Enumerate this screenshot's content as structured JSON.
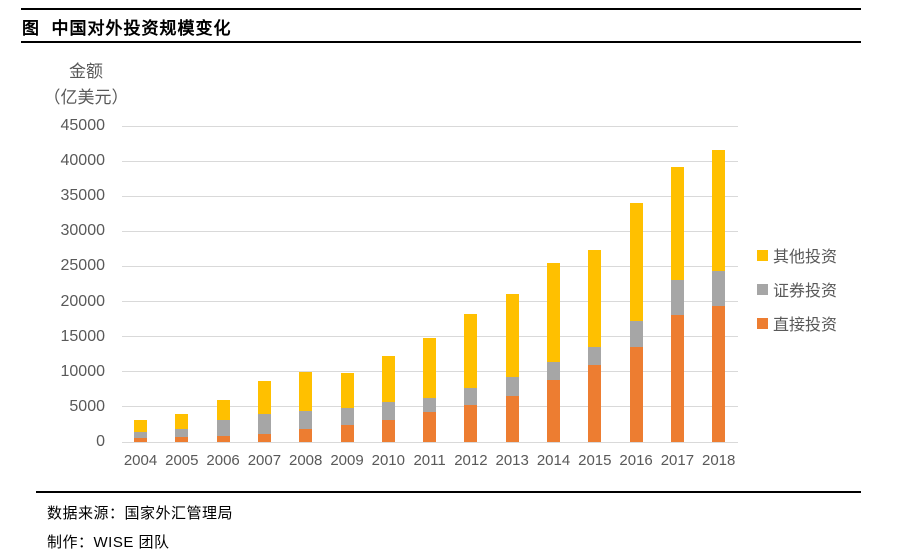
{
  "header": {
    "title": "图  中国对外投资规模变化"
  },
  "chart_data": {
    "type": "bar",
    "stacked": true,
    "title": "图 中国对外投资规模变化",
    "ylabel_line1": "金额",
    "ylabel_line2": "（亿美元）",
    "xlabel": "",
    "categories": [
      "2004",
      "2005",
      "2006",
      "2007",
      "2008",
      "2009",
      "2010",
      "2011",
      "2012",
      "2013",
      "2014",
      "2015",
      "2016",
      "2017",
      "2018"
    ],
    "series": [
      {
        "name": "直接投资",
        "color": "#ED7D31",
        "values": [
          527,
          645,
          906,
          1160,
          1856,
          2458,
          3172,
          4248,
          5319,
          6605,
          8826,
          10978,
          13574,
          18090,
          19382
        ]
      },
      {
        "name": "证券投资",
        "color": "#A6A6A6",
        "values": [
          920,
          1167,
          2292,
          2846,
          2525,
          2428,
          2571,
          2044,
          2406,
          2585,
          2625,
          2613,
          3651,
          4925,
          4979
        ]
      },
      {
        "name": "其他投资",
        "color": "#FFC000",
        "values": [
          1666,
          2161,
          2837,
          4681,
          5519,
          4942,
          6440,
          8499,
          10436,
          11871,
          14087,
          13797,
          16880,
          16087,
          17167
        ]
      }
    ],
    "totals": [
      3113,
      3973,
      6035,
      8687,
      9900,
      9828,
      12183,
      14791,
      18161,
      21061,
      25538,
      27388,
      34105,
      39102,
      41528
    ],
    "ylim": [
      0,
      45000
    ],
    "ytick_step": 5000,
    "grid": true,
    "gridline_color": "#D9D9D9",
    "legend_position": "right",
    "legend_order_top_to_bottom": [
      "其他投资",
      "证券投资",
      "直接投资"
    ]
  },
  "footer": {
    "source": "数据来源：国家外汇管理局",
    "maker": "制作：WISE 团队"
  }
}
